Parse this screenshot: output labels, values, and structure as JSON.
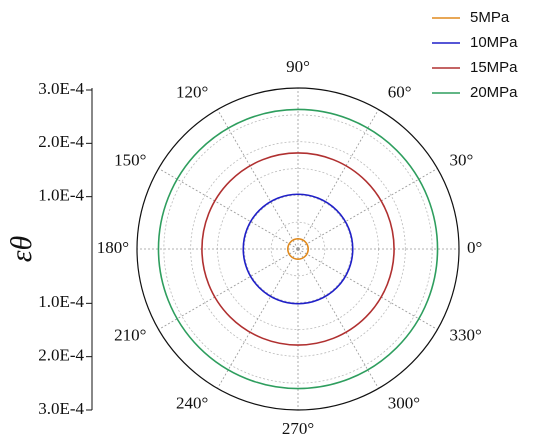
{
  "chart_data": {
    "type": "polar",
    "ylabel": "εθ",
    "rlim": [
      0,
      0.0003
    ],
    "rgrid": [
      5e-05,
      0.0001,
      0.00015,
      0.0002,
      0.00025
    ],
    "ylim": [
      -0.0003,
      0.0003
    ],
    "yticks": [
      {
        "value": 0.0003,
        "label": "3.0E-4"
      },
      {
        "value": 0.0002,
        "label": "2.0E-4"
      },
      {
        "value": 0.0001,
        "label": "1.0E-4"
      },
      {
        "value": -0.0001,
        "label": "1.0E-4"
      },
      {
        "value": -0.0002,
        "label": "2.0E-4"
      },
      {
        "value": -0.0003,
        "label": "3.0E-4"
      }
    ],
    "thetaticks": [
      {
        "value": 0,
        "label": "0°"
      },
      {
        "value": 30,
        "label": "30°"
      },
      {
        "value": 60,
        "label": "60°"
      },
      {
        "value": 90,
        "label": "90°"
      },
      {
        "value": 120,
        "label": "120°"
      },
      {
        "value": 150,
        "label": "150°"
      },
      {
        "value": 180,
        "label": "180°"
      },
      {
        "value": 210,
        "label": "210°"
      },
      {
        "value": 240,
        "label": "240°"
      },
      {
        "value": 270,
        "label": "270°"
      },
      {
        "value": 300,
        "label": "300°"
      },
      {
        "value": 330,
        "label": "330°"
      }
    ],
    "series": [
      {
        "name": "5MPa",
        "color": "#e08a1e",
        "value": 1.9e-05
      },
      {
        "name": "10MPa",
        "color": "#1f1fc8",
        "value": 0.000102
      },
      {
        "name": "15MPa",
        "color": "#b03030",
        "value": 0.000179
      },
      {
        "name": "20MPa",
        "color": "#2e9e5e",
        "value": 0.00026
      }
    ],
    "legend": "top-right"
  }
}
